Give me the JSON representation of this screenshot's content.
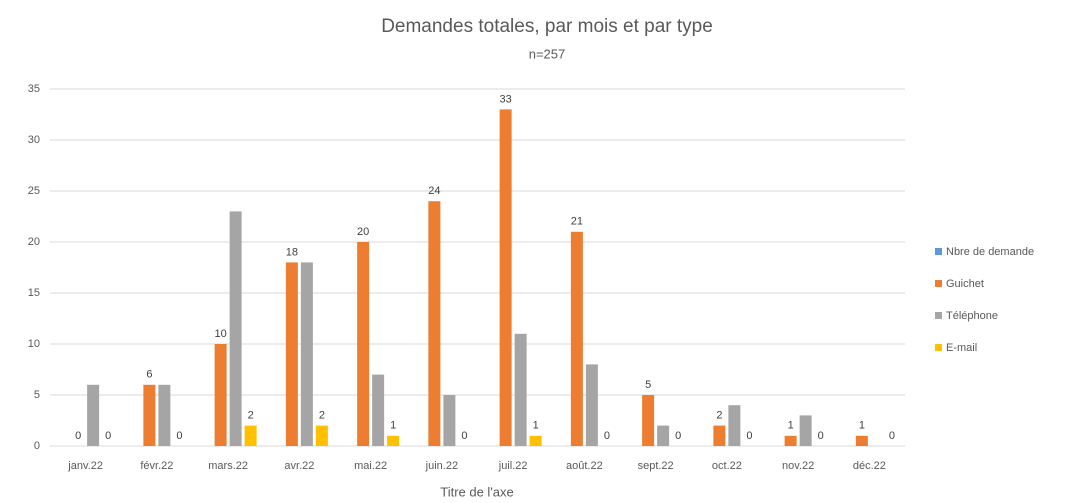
{
  "chart_data": {
    "type": "bar",
    "title": "Demandes totales, par mois et par type",
    "subtitle": "n=257",
    "x_label": "Titre de l'axe",
    "categories": [
      "janv.22",
      "févr.22",
      "mars.22",
      "avr.22",
      "mai.22",
      "juin.22",
      "juil.22",
      "août.22",
      "sept.22",
      "oct.22",
      "nov.22",
      "déc.22"
    ],
    "series": [
      {
        "name": "Nbre de demande",
        "color": "#5b9bd5",
        "data_labels": false,
        "values": [
          null,
          null,
          null,
          null,
          null,
          null,
          null,
          null,
          null,
          null,
          null,
          null
        ]
      },
      {
        "name": "Guichet",
        "color": "#ed7d31",
        "data_labels": true,
        "values": [
          0,
          6,
          10,
          18,
          20,
          24,
          33,
          21,
          5,
          2,
          1,
          1
        ]
      },
      {
        "name": "Téléphone",
        "color": "#a5a5a5",
        "data_labels": false,
        "values": [
          6,
          6,
          23,
          18,
          7,
          5,
          11,
          8,
          2,
          4,
          3,
          0
        ]
      },
      {
        "name": "E-mail",
        "color": "#ffc000",
        "data_labels": true,
        "values": [
          0,
          0,
          2,
          2,
          1,
          0,
          1,
          0,
          0,
          0,
          0,
          0
        ]
      }
    ],
    "ylim": [
      0,
      35
    ],
    "yticks": [
      0,
      5,
      10,
      15,
      20,
      25,
      30,
      35
    ],
    "grid": true,
    "legend": "right"
  }
}
